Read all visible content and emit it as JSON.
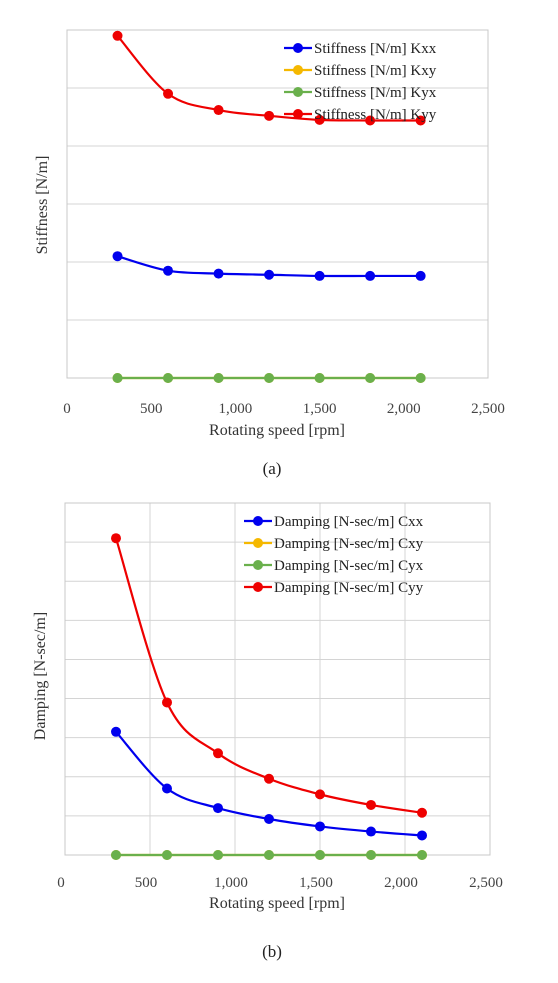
{
  "chart_data": [
    {
      "type": "line",
      "caption": "(a)",
      "xlabel": "Rotating speed [rpm]",
      "ylabel": "Stiffness [N/m]",
      "xlim": [
        0,
        2500
      ],
      "ylim": [
        0,
        6
      ],
      "xticks": [
        "0",
        "500",
        "1,000",
        "1,500",
        "2,000",
        "2,500"
      ],
      "y_tick_labels_shown": false,
      "grid": "horizontal",
      "legend_position": "top-right",
      "x": [
        300,
        600,
        900,
        1200,
        1500,
        1800,
        2100
      ],
      "series": [
        {
          "name": "Stiffness [N/m] Kxx",
          "color": "#0000ee",
          "values": [
            2.1,
            1.85,
            1.8,
            1.78,
            1.76,
            1.76,
            1.76
          ]
        },
        {
          "name": "Stiffness [N/m] Kxy",
          "color": "#f5b800",
          "values": [
            0,
            0,
            0,
            0,
            0,
            0,
            0
          ]
        },
        {
          "name": "Stiffness [N/m] Kyx",
          "color": "#6ab04c",
          "values": [
            0,
            0,
            0,
            0,
            0,
            0,
            0
          ]
        },
        {
          "name": "Stiffness [N/m] Kyy",
          "color": "#ee0000",
          "values": [
            5.9,
            4.9,
            4.62,
            4.52,
            4.45,
            4.44,
            4.44
          ]
        }
      ]
    },
    {
      "type": "line",
      "caption": "(b)",
      "xlabel": "Rotating speed [rpm]",
      "ylabel": "Damping [N-sec/m]",
      "xlim": [
        0,
        2500
      ],
      "ylim": [
        0,
        9
      ],
      "xticks": [
        "0",
        "500",
        "1,000",
        "1,500",
        "2,000",
        "2,500"
      ],
      "y_tick_labels_shown": false,
      "grid": "both",
      "legend_position": "top-right",
      "x": [
        300,
        600,
        900,
        1200,
        1500,
        1800,
        2100
      ],
      "series": [
        {
          "name": "Damping [N-sec/m] Cxx",
          "color": "#0000ee",
          "values": [
            3.15,
            1.7,
            1.2,
            0.92,
            0.73,
            0.6,
            0.5
          ]
        },
        {
          "name": "Damping [N-sec/m] Cxy",
          "color": "#f5b800",
          "values": [
            0,
            0,
            0,
            0,
            0,
            0,
            0
          ]
        },
        {
          "name": "Damping [N-sec/m] Cyx",
          "color": "#6ab04c",
          "values": [
            0,
            0,
            0,
            0,
            0,
            0,
            0
          ]
        },
        {
          "name": "Damping [N-sec/m] Cyy",
          "color": "#ee0000",
          "values": [
            8.1,
            3.9,
            2.6,
            1.95,
            1.55,
            1.28,
            1.08
          ]
        }
      ]
    }
  ]
}
